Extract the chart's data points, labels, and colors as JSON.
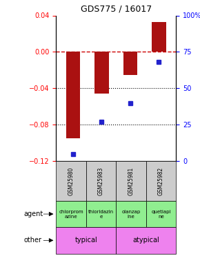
{
  "title": "GDS775 / 16017",
  "samples": [
    "GSM25980",
    "GSM25983",
    "GSM25981",
    "GSM25982"
  ],
  "log_ratios": [
    -0.095,
    -0.046,
    -0.025,
    0.033
  ],
  "percentile_ranks": [
    5,
    27,
    40,
    68
  ],
  "agents": [
    "chlorprom\nazine",
    "thioridazin\ne",
    "olanzap\nine",
    "quetiapi\nne"
  ],
  "other_groups": [
    [
      "typical",
      2
    ],
    [
      "atypical",
      2
    ]
  ],
  "other_color": "#ee82ee",
  "agent_color": "#90ee90",
  "left_ylim": [
    -0.12,
    0.04
  ],
  "right_ylim": [
    0,
    100
  ],
  "left_yticks": [
    -0.12,
    -0.08,
    -0.04,
    0,
    0.04
  ],
  "right_yticks": [
    0,
    25,
    50,
    75,
    100
  ],
  "right_yticklabels": [
    "0",
    "25",
    "50",
    "75",
    "100%"
  ],
  "bar_color": "#aa1111",
  "dot_color": "#2222cc",
  "zero_line_color": "#cc0000",
  "sample_box_color": "#cccccc",
  "left_tick_color": "red",
  "right_tick_color": "blue"
}
